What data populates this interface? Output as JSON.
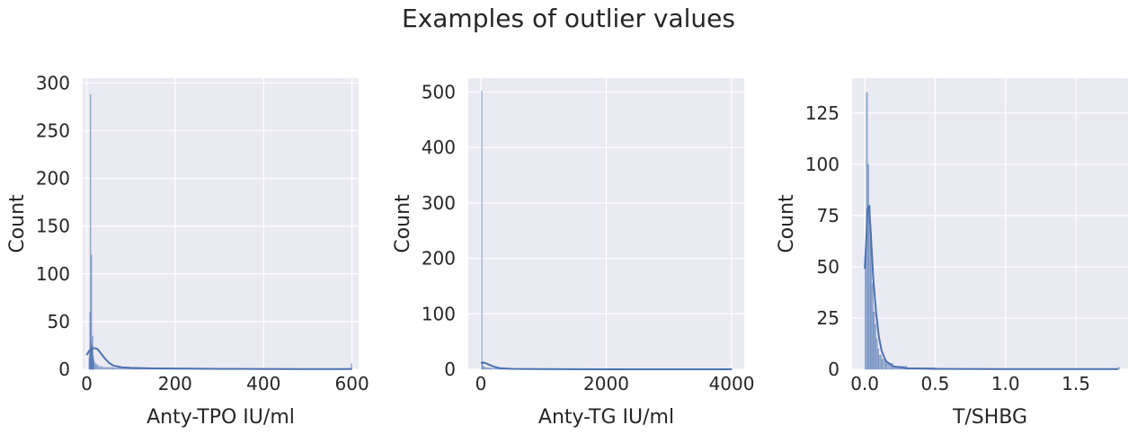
{
  "figure": {
    "title": "Examples of outlier values",
    "style": {
      "background": "#eaeaf2",
      "grid": "#ffffff",
      "bar_fill": "#4c72b0",
      "kde": "#4c72b0"
    }
  },
  "chart_data": [
    {
      "type": "histogram",
      "xlabel": "Anty-TPO IU/ml",
      "ylabel": "Count",
      "xlim": [
        -9,
        615
      ],
      "ylim": [
        0,
        305
      ],
      "xticks": [
        0,
        200,
        400,
        600
      ],
      "yticks": [
        0,
        50,
        100,
        150,
        200,
        250,
        300
      ],
      "grid": true,
      "bins": [
        {
          "x0": 5,
          "x1": 6,
          "count": 12
        },
        {
          "x0": 6,
          "x1": 7,
          "count": 18
        },
        {
          "x0": 7,
          "x1": 8,
          "count": 60
        },
        {
          "x0": 8,
          "x1": 9,
          "count": 288
        },
        {
          "x0": 9,
          "x1": 10,
          "count": 30
        },
        {
          "x0": 10,
          "x1": 11,
          "count": 120
        },
        {
          "x0": 11,
          "x1": 12,
          "count": 25
        },
        {
          "x0": 12,
          "x1": 13,
          "count": 20
        },
        {
          "x0": 13,
          "x1": 14,
          "count": 35
        },
        {
          "x0": 14,
          "x1": 15,
          "count": 14
        },
        {
          "x0": 15,
          "x1": 17,
          "count": 10
        },
        {
          "x0": 17,
          "x1": 20,
          "count": 7
        },
        {
          "x0": 20,
          "x1": 25,
          "count": 5
        },
        {
          "x0": 25,
          "x1": 35,
          "count": 3
        },
        {
          "x0": 35,
          "x1": 60,
          "count": 2
        },
        {
          "x0": 60,
          "x1": 110,
          "count": 1.5
        },
        {
          "x0": 110,
          "x1": 200,
          "count": 1
        },
        {
          "x0": 200,
          "x1": 345,
          "count": 1
        },
        {
          "x0": 598,
          "x1": 600,
          "count": 6
        }
      ],
      "kde": [
        [
          0,
          15
        ],
        [
          5,
          19
        ],
        [
          10,
          21
        ],
        [
          15,
          22
        ],
        [
          20,
          22
        ],
        [
          25,
          21
        ],
        [
          30,
          18
        ],
        [
          40,
          12
        ],
        [
          50,
          7
        ],
        [
          60,
          4
        ],
        [
          80,
          2
        ],
        [
          100,
          1.5
        ],
        [
          150,
          1
        ],
        [
          200,
          0.8
        ],
        [
          300,
          0.5
        ],
        [
          400,
          0.3
        ],
        [
          500,
          0.2
        ],
        [
          600,
          0.3
        ]
      ]
    },
    {
      "type": "histogram",
      "xlabel": "Anty-TG IU/ml",
      "ylabel": "Count",
      "xlim": [
        -200,
        4200
      ],
      "ylim": [
        0,
        525
      ],
      "xticks": [
        0,
        2000,
        4000
      ],
      "yticks": [
        0,
        100,
        200,
        300,
        400,
        500
      ],
      "grid": true,
      "bins": [
        {
          "x0": 10,
          "x1": 18,
          "count": 502
        },
        {
          "x0": 18,
          "x1": 30,
          "count": 14
        },
        {
          "x0": 30,
          "x1": 60,
          "count": 5
        },
        {
          "x0": 60,
          "x1": 150,
          "count": 3
        },
        {
          "x0": 150,
          "x1": 600,
          "count": 1.5
        },
        {
          "x0": 600,
          "x1": 1500,
          "count": 0.8
        },
        {
          "x0": 3990,
          "x1": 4010,
          "count": 1
        }
      ],
      "kde": [
        [
          0,
          11
        ],
        [
          50,
          12
        ],
        [
          100,
          10
        ],
        [
          200,
          5
        ],
        [
          300,
          2
        ],
        [
          500,
          0.8
        ],
        [
          1000,
          0.3
        ],
        [
          2000,
          0.1
        ],
        [
          3000,
          0.05
        ],
        [
          4000,
          0.05
        ]
      ]
    },
    {
      "type": "histogram",
      "xlabel": "T/SHBG",
      "ylabel": "Count",
      "xlim": [
        -0.09,
        1.87
      ],
      "ylim": [
        0,
        142
      ],
      "xticks": [
        0.0,
        0.5,
        1.0,
        1.5
      ],
      "yticks": [
        0,
        25,
        50,
        75,
        100,
        125
      ],
      "grid": true,
      "bins": [
        {
          "x0": 0.0,
          "x1": 0.01,
          "count": 55
        },
        {
          "x0": 0.01,
          "x1": 0.02,
          "count": 135
        },
        {
          "x0": 0.02,
          "x1": 0.03,
          "count": 100
        },
        {
          "x0": 0.03,
          "x1": 0.04,
          "count": 80
        },
        {
          "x0": 0.04,
          "x1": 0.05,
          "count": 62
        },
        {
          "x0": 0.05,
          "x1": 0.06,
          "count": 42
        },
        {
          "x0": 0.06,
          "x1": 0.07,
          "count": 28
        },
        {
          "x0": 0.07,
          "x1": 0.08,
          "count": 22
        },
        {
          "x0": 0.08,
          "x1": 0.09,
          "count": 15
        },
        {
          "x0": 0.09,
          "x1": 0.1,
          "count": 10
        },
        {
          "x0": 0.1,
          "x1": 0.12,
          "count": 7
        },
        {
          "x0": 0.12,
          "x1": 0.15,
          "count": 5
        },
        {
          "x0": 0.15,
          "x1": 0.2,
          "count": 3
        },
        {
          "x0": 0.2,
          "x1": 0.3,
          "count": 1.5
        },
        {
          "x0": 0.3,
          "x1": 0.5,
          "count": 0.8
        },
        {
          "x0": 1.8,
          "x1": 1.81,
          "count": 1
        }
      ],
      "kde": [
        [
          0.0,
          49
        ],
        [
          0.01,
          62
        ],
        [
          0.02,
          78
        ],
        [
          0.03,
          80
        ],
        [
          0.04,
          70
        ],
        [
          0.06,
          45
        ],
        [
          0.08,
          28
        ],
        [
          0.1,
          16
        ],
        [
          0.12,
          9
        ],
        [
          0.15,
          4
        ],
        [
          0.2,
          1.5
        ],
        [
          0.3,
          0.5
        ],
        [
          0.5,
          0.2
        ],
        [
          1.0,
          0.1
        ],
        [
          1.5,
          0.1
        ],
        [
          1.8,
          0.1
        ]
      ]
    }
  ]
}
